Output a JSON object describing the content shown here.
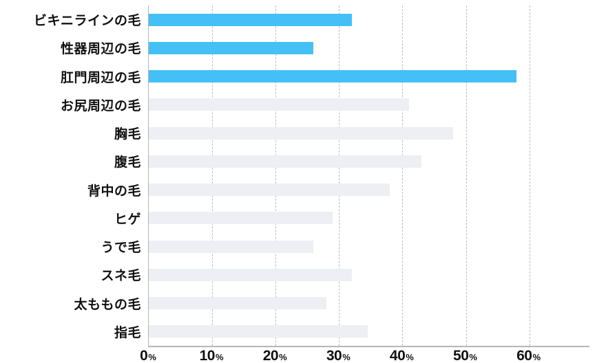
{
  "chart_data": {
    "type": "bar",
    "orientation": "horizontal",
    "title": "",
    "xlabel": "",
    "ylabel": "",
    "categories": [
      "ビキニラインの毛",
      "性器周辺の毛",
      "肛門周辺の毛",
      "お尻周辺の毛",
      "胸毛",
      "腹毛",
      "背中の毛",
      "ヒゲ",
      "うで毛",
      "スネ毛",
      "太ももの毛",
      "指毛"
    ],
    "values": [
      32,
      26,
      58,
      41,
      48,
      43,
      38,
      29,
      26,
      32,
      28,
      34.5
    ],
    "highlighted": [
      true,
      true,
      true,
      false,
      false,
      false,
      false,
      false,
      false,
      false,
      false,
      false
    ],
    "xlim": [
      0,
      60
    ],
    "x_tick_values": [
      0,
      10,
      20,
      30,
      40,
      50,
      60
    ],
    "x_tick_labels": [
      "0%",
      "10%",
      "20%",
      "30%",
      "40%",
      "50%",
      "60%"
    ],
    "grid": "vertical-dashed",
    "legend": "none",
    "colors": {
      "highlight_bar": "#44C0F6",
      "default_bar": "#EDEFF4",
      "axis": "#B5B5B5",
      "gridline": "#BCBCBC",
      "text": "#111111"
    }
  }
}
